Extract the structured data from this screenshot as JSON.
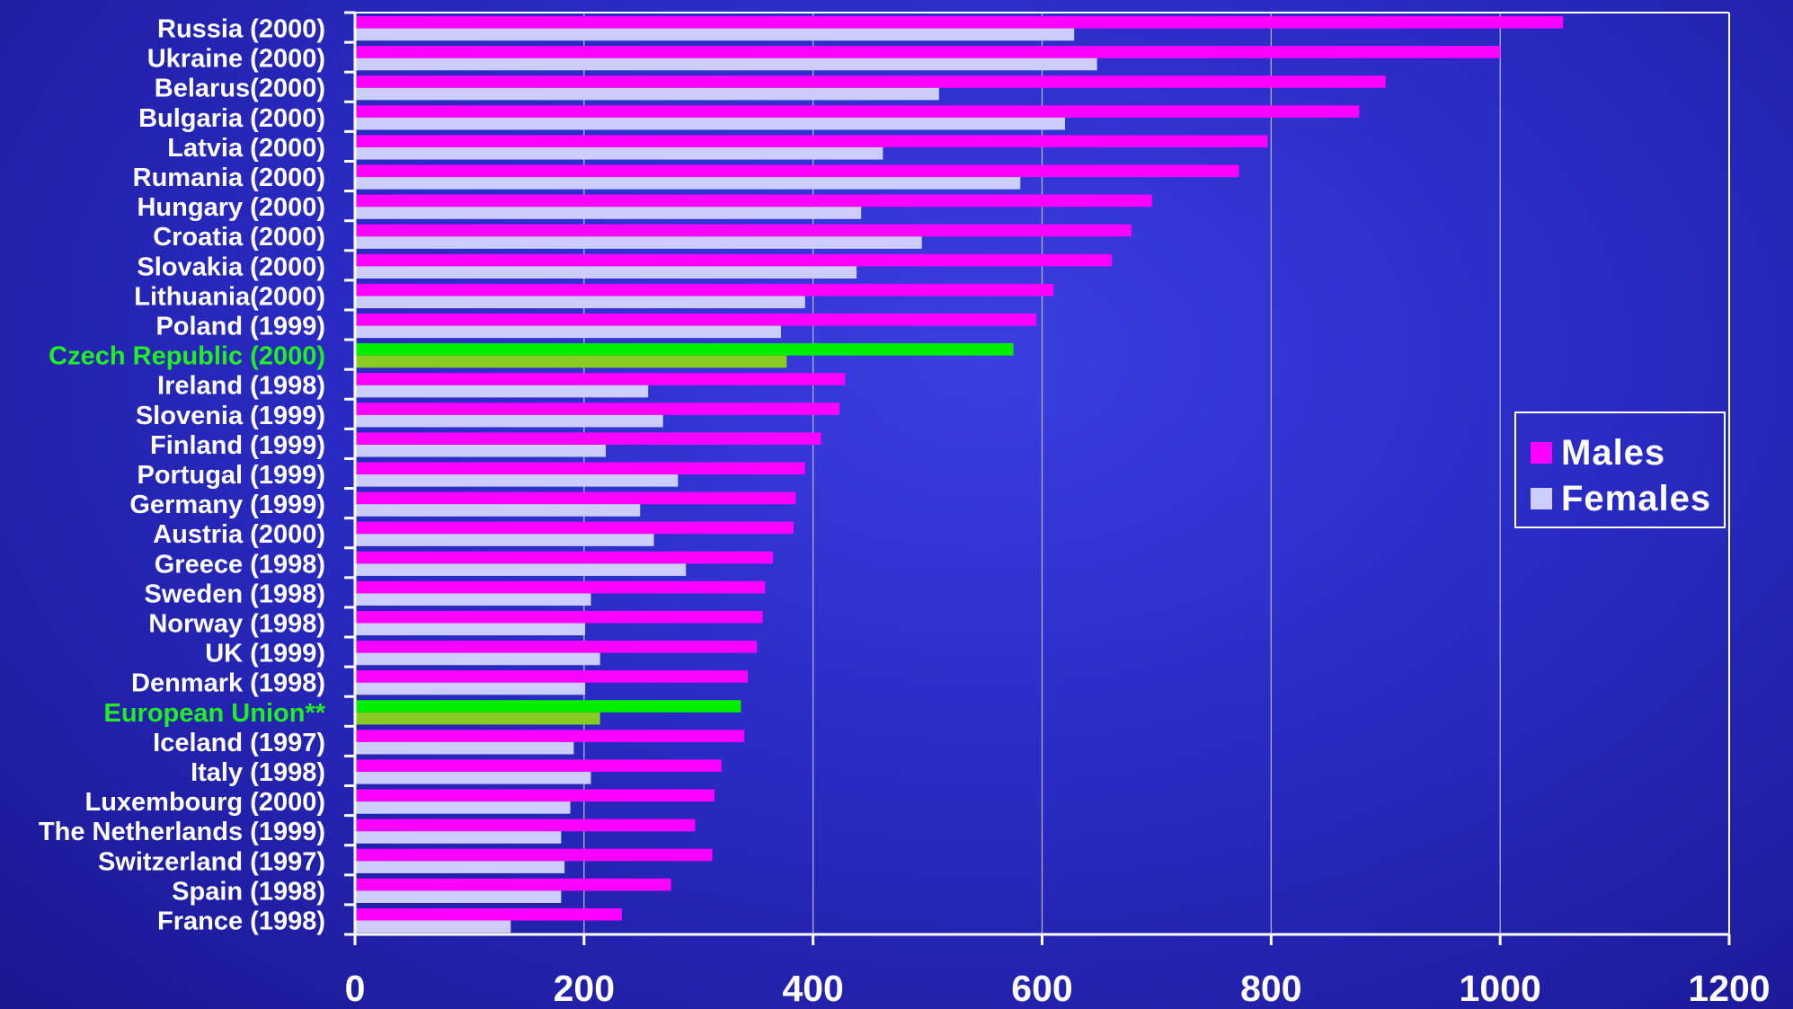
{
  "chart_data": {
    "type": "bar",
    "orientation": "horizontal",
    "categories": [
      "Russia (2000)",
      "Ukraine (2000)",
      "Belarus(2000)",
      "Bulgaria (2000)",
      "Latvia (2000)",
      "Rumania (2000)",
      "Hungary (2000)",
      "Croatia (2000)",
      "Slovakia (2000)",
      "Lithuania(2000)",
      "Poland (1999)",
      "Czech Republic (2000)",
      "Ireland (1998)",
      "Slovenia (1999)",
      "Finland (1999)",
      "Portugal (1999)",
      "Germany (1999)",
      "Austria (2000)",
      "Greece (1998)",
      "Sweden (1998)",
      "Norway (1998)",
      "UK (1999)",
      "Denmark (1998)",
      "European Union**",
      "Iceland (1997)",
      "Italy (1998)",
      "Luxembourg (2000)",
      "The Netherlands (1999)",
      "Switzerland (1997)",
      "Spain (1998)",
      "France (1998)"
    ],
    "highlighted": [
      "Czech Republic (2000)",
      "European Union**"
    ],
    "series": [
      {
        "name": "Males",
        "color": "#ff00ff",
        "values": [
          1055,
          1000,
          900,
          877,
          797,
          772,
          696,
          678,
          661,
          610,
          595,
          575,
          428,
          423,
          407,
          393,
          385,
          383,
          365,
          358,
          356,
          351,
          343,
          337,
          340,
          320,
          314,
          297,
          312,
          276,
          233
        ]
      },
      {
        "name": "Females",
        "color": "#ccccff",
        "values": [
          628,
          648,
          510,
          620,
          461,
          581,
          442,
          495,
          438,
          393,
          372,
          377,
          256,
          269,
          219,
          282,
          249,
          261,
          289,
          206,
          201,
          214,
          201,
          214,
          191,
          206,
          188,
          180,
          183,
          180,
          136
        ]
      }
    ],
    "highlight_colors": {
      "males": "#00ee00",
      "females": "#88cc22"
    },
    "xticks": [
      "0",
      "200",
      "400",
      "600",
      "800",
      "1000",
      "1200"
    ],
    "xlim": [
      0,
      1200
    ],
    "grid": "vertical",
    "legend_position": "right"
  },
  "legend": {
    "males_label": "Males",
    "females_label": "Females"
  },
  "colors": {
    "background": "#2a2bc4",
    "axis": "#ffffff",
    "label_text": "#ffffff",
    "highlight_text": "#22ee22"
  }
}
